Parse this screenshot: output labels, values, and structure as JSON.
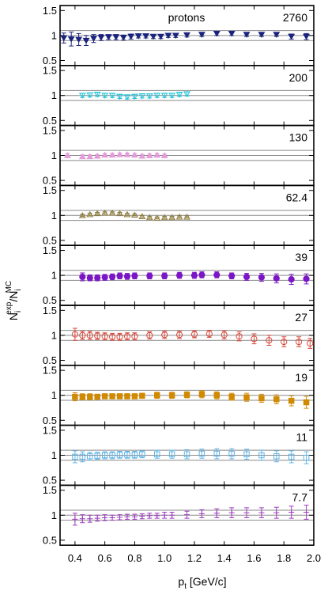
{
  "chart_data": {
    "type": "scatter",
    "title": "",
    "xlabel": "p_t [GeV/c]",
    "xlabel_main": "p",
    "xlabel_sub": "t",
    "xlabel_rest": " [GeV/c]",
    "ylabel": "N_i^exp/N_i^MC",
    "ylabel_parts": {
      "n1": "N",
      "sub1": "i",
      "sup1": "exp",
      "slash": "/N",
      "sub2": "i",
      "sup2": "MC"
    },
    "xlim": [
      0.3,
      2.0
    ],
    "ylim": [
      0.4,
      1.6
    ],
    "xticks": [
      0.4,
      0.6,
      0.8,
      1.0,
      1.2,
      1.4,
      1.6,
      1.8,
      2.0
    ],
    "xtick_labels": [
      "0.4",
      "0.6",
      "0.8",
      "1.0",
      "1.2",
      "1.4",
      "1.6",
      "1.8",
      "2.0"
    ],
    "yticks": [
      0.5,
      1.0,
      1.5
    ],
    "ytick_labels": [
      "0.5",
      "1",
      "1.5"
    ],
    "ref_lines": [
      1.0,
      0.9,
      1.1
    ],
    "particle_label": "protons",
    "panels": [
      {
        "energy": "2760",
        "marker": "triangle-down-filled",
        "color": "#1a237e",
        "x": [
          0.325,
          0.375,
          0.425,
          0.475,
          0.525,
          0.575,
          0.625,
          0.675,
          0.725,
          0.775,
          0.825,
          0.875,
          0.925,
          0.975,
          1.025,
          1.075,
          1.15,
          1.25,
          1.35,
          1.45,
          1.55,
          1.65,
          1.75,
          1.85,
          1.95
        ],
        "y": [
          0.95,
          0.93,
          0.92,
          0.9,
          0.94,
          0.96,
          0.97,
          0.97,
          0.96,
          0.98,
          0.99,
          0.99,
          0.98,
          0.98,
          1.0,
          1.0,
          1.01,
          1.02,
          1.04,
          1.04,
          1.02,
          1.02,
          1.02,
          0.98,
          0.98
        ],
        "err": [
          0.1,
          0.14,
          0.12,
          0.1,
          0.08,
          0.06,
          0.05,
          0.05,
          0.05,
          0.05,
          0.04,
          0.04,
          0.04,
          0.04,
          0.04,
          0.04,
          0.04,
          0.04,
          0.04,
          0.04,
          0.04,
          0.04,
          0.04,
          0.05,
          0.06
        ]
      },
      {
        "energy": "200",
        "marker": "triangle-down-open",
        "color": "#26c6da",
        "x": [
          0.45,
          0.5,
          0.55,
          0.6,
          0.65,
          0.7,
          0.75,
          0.8,
          0.85,
          0.9,
          0.95,
          1.0,
          1.05,
          1.1,
          1.15
        ],
        "y": [
          1.0,
          1.01,
          1.02,
          1.0,
          1.0,
          0.98,
          0.97,
          0.98,
          0.99,
          0.99,
          1.0,
          1.0,
          1.0,
          1.02,
          1.03
        ],
        "err": [
          0.04,
          0.04,
          0.04,
          0.04,
          0.04,
          0.04,
          0.04,
          0.04,
          0.04,
          0.04,
          0.04,
          0.04,
          0.04,
          0.04,
          0.04
        ]
      },
      {
        "energy": "130",
        "marker": "triangle-up-filled",
        "color": "#e39ad9",
        "x": [
          0.35,
          0.45,
          0.5,
          0.55,
          0.6,
          0.65,
          0.7,
          0.75,
          0.8,
          0.85,
          0.9,
          0.95,
          1.0
        ],
        "y": [
          1.0,
          0.98,
          0.98,
          0.99,
          1.01,
          1.01,
          1.02,
          1.02,
          1.01,
          0.99,
          1.0,
          1.01,
          1.0
        ],
        "err": [
          0.04,
          0.03,
          0.03,
          0.03,
          0.03,
          0.03,
          0.03,
          0.03,
          0.03,
          0.03,
          0.03,
          0.03,
          0.03
        ]
      },
      {
        "energy": "62.4",
        "marker": "triangle-up-open",
        "color": "#8d7a3c",
        "x": [
          0.45,
          0.5,
          0.55,
          0.6,
          0.65,
          0.7,
          0.75,
          0.8,
          0.85,
          0.9,
          0.95,
          1.0,
          1.05,
          1.1,
          1.15
        ],
        "y": [
          1.0,
          1.02,
          1.04,
          1.05,
          1.05,
          1.04,
          1.02,
          1.01,
          0.98,
          0.96,
          0.95,
          0.96,
          0.96,
          0.97,
          0.97
        ],
        "err": [
          0.02,
          0.02,
          0.02,
          0.02,
          0.02,
          0.02,
          0.02,
          0.02,
          0.02,
          0.02,
          0.02,
          0.02,
          0.02,
          0.02,
          0.02
        ]
      },
      {
        "energy": "39",
        "marker": "circle-filled",
        "color": "#7b16c7",
        "x": [
          0.45,
          0.5,
          0.55,
          0.6,
          0.65,
          0.7,
          0.75,
          0.8,
          0.9,
          1.0,
          1.1,
          1.2,
          1.25,
          1.35,
          1.45,
          1.55,
          1.65,
          1.75,
          1.85,
          1.95
        ],
        "y": [
          0.97,
          0.95,
          0.95,
          0.96,
          0.97,
          0.99,
          0.98,
          0.99,
          0.99,
          0.99,
          1.0,
          1.0,
          1.01,
          1.01,
          0.99,
          0.97,
          0.96,
          0.94,
          0.92,
          0.93
        ],
        "err": [
          0.08,
          0.06,
          0.06,
          0.06,
          0.06,
          0.06,
          0.06,
          0.06,
          0.06,
          0.06,
          0.06,
          0.06,
          0.06,
          0.06,
          0.06,
          0.07,
          0.08,
          0.09,
          0.1,
          0.1
        ]
      },
      {
        "energy": "27",
        "marker": "circle-open",
        "color": "#d9473a",
        "x": [
          0.4,
          0.45,
          0.5,
          0.55,
          0.6,
          0.65,
          0.7,
          0.75,
          0.8,
          0.9,
          1.0,
          1.1,
          1.2,
          1.3,
          1.4,
          1.5,
          1.6,
          1.7,
          1.8,
          1.9,
          1.975
        ],
        "y": [
          1.02,
          1.0,
          1.0,
          0.99,
          0.98,
          0.97,
          0.97,
          0.98,
          0.98,
          1.0,
          1.01,
          1.01,
          1.02,
          1.03,
          1.01,
          0.98,
          0.93,
          0.9,
          0.87,
          0.87,
          0.84
        ],
        "err": [
          0.12,
          0.08,
          0.08,
          0.07,
          0.07,
          0.07,
          0.07,
          0.07,
          0.07,
          0.07,
          0.07,
          0.07,
          0.07,
          0.07,
          0.08,
          0.09,
          0.1,
          0.1,
          0.1,
          0.1,
          0.1
        ]
      },
      {
        "energy": "19",
        "marker": "square-filled",
        "color": "#d18a00",
        "x": [
          0.4,
          0.45,
          0.5,
          0.55,
          0.6,
          0.65,
          0.7,
          0.75,
          0.8,
          0.85,
          0.95,
          1.05,
          1.15,
          1.25,
          1.35,
          1.45,
          1.55,
          1.65,
          1.75,
          1.85,
          1.95
        ],
        "y": [
          0.97,
          0.97,
          0.97,
          0.97,
          0.98,
          0.98,
          0.98,
          0.98,
          0.98,
          0.99,
          1.0,
          1.0,
          1.01,
          1.02,
          1.0,
          0.97,
          0.96,
          0.94,
          0.92,
          0.89,
          0.86
        ],
        "err": [
          0.08,
          0.06,
          0.06,
          0.05,
          0.05,
          0.05,
          0.05,
          0.05,
          0.05,
          0.05,
          0.06,
          0.06,
          0.06,
          0.07,
          0.07,
          0.07,
          0.08,
          0.08,
          0.09,
          0.1,
          0.12
        ]
      },
      {
        "energy": "11",
        "marker": "square-open",
        "color": "#5fb4e8",
        "x": [
          0.4,
          0.45,
          0.5,
          0.55,
          0.6,
          0.65,
          0.7,
          0.75,
          0.8,
          0.85,
          0.95,
          1.05,
          1.15,
          1.25,
          1.35,
          1.45,
          1.55,
          1.65,
          1.75,
          1.85,
          1.95
        ],
        "y": [
          0.97,
          0.97,
          0.98,
          0.99,
          1.0,
          1.0,
          1.01,
          1.01,
          1.01,
          1.02,
          1.02,
          1.02,
          1.02,
          1.03,
          1.03,
          1.03,
          1.02,
          1.0,
          0.98,
          0.97,
          0.95
        ],
        "err": [
          0.12,
          0.1,
          0.08,
          0.07,
          0.07,
          0.07,
          0.07,
          0.07,
          0.07,
          0.07,
          0.08,
          0.08,
          0.09,
          0.09,
          0.1,
          0.1,
          0.1,
          0.1,
          0.11,
          0.12,
          0.12
        ]
      },
      {
        "energy": "7.7",
        "marker": "plus",
        "color": "#a03cc0",
        "x": [
          0.4,
          0.45,
          0.5,
          0.55,
          0.6,
          0.65,
          0.7,
          0.75,
          0.8,
          0.85,
          0.9,
          0.95,
          1.0,
          1.05,
          1.15,
          1.25,
          1.35,
          1.45,
          1.55,
          1.65,
          1.75,
          1.85,
          1.95
        ],
        "y": [
          0.92,
          0.93,
          0.93,
          0.94,
          0.95,
          0.95,
          0.96,
          0.97,
          0.97,
          0.98,
          0.99,
          0.99,
          1.0,
          1.0,
          1.01,
          1.03,
          1.04,
          1.05,
          1.05,
          1.05,
          1.05,
          1.06,
          1.06
        ],
        "err": [
          0.12,
          0.08,
          0.07,
          0.06,
          0.06,
          0.05,
          0.05,
          0.05,
          0.05,
          0.05,
          0.05,
          0.05,
          0.06,
          0.06,
          0.07,
          0.08,
          0.09,
          0.1,
          0.1,
          0.1,
          0.11,
          0.12,
          0.14
        ]
      }
    ]
  }
}
